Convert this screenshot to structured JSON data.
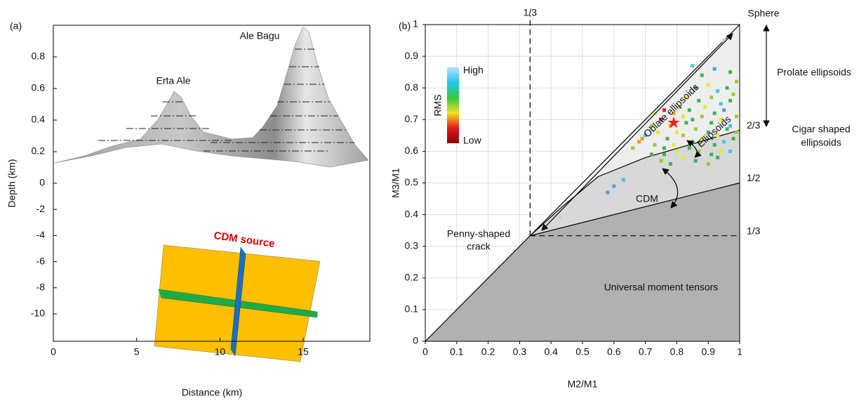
{
  "chart_data": [
    {
      "type": "illustration",
      "panel_label": "(a)",
      "xlabel": "Distance (km)",
      "ylabel": "Depth (km)",
      "xlim": [
        0,
        19
      ],
      "xticks": [
        0,
        5,
        10,
        15
      ],
      "y_segments": [
        {
          "ylim": [
            0,
            1
          ],
          "yticks": [
            0.2,
            0.4,
            0.6,
            0.8
          ]
        },
        {
          "ylim": [
            -12.1,
            0
          ],
          "yticks": [
            0,
            -2,
            -4,
            -6,
            -8,
            -10
          ]
        }
      ],
      "annotations": {
        "peak1": "Erta Ale",
        "peak2": "Ale Bagu",
        "source": "CDM source"
      }
    },
    {
      "type": "scatter",
      "panel_label": "(b)",
      "xlabel": "M2/M1",
      "ylabel": "M3/M1",
      "xlim": [
        0,
        1
      ],
      "ylim": [
        0,
        1
      ],
      "xticks": [
        0,
        0.1,
        0.2,
        0.3,
        0.4,
        0.5,
        0.6,
        0.7,
        0.8,
        0.9,
        1
      ],
      "yticks": [
        0,
        0.1,
        0.2,
        0.3,
        0.4,
        0.5,
        0.6,
        0.7,
        0.8,
        0.9,
        1
      ],
      "x2ticks": [
        {
          "value": 0.3333,
          "label": "1/3"
        }
      ],
      "y2lim": [
        0,
        1
      ],
      "y2ticks": [
        {
          "value": 0.6667,
          "label": "2/3"
        },
        {
          "value": 0.5,
          "label": "1/2"
        },
        {
          "value": 0.3333,
          "label": "1/3"
        }
      ],
      "grid": true,
      "regions": [
        {
          "color": "#a6a6a6",
          "x": [
            0,
            0.3333,
            1,
            1
          ],
          "y": [
            0,
            0.3333,
            0.5,
            0
          ]
        },
        {
          "color": "#d3d3d3",
          "x": [
            0.3333,
            0.43,
            0.55,
            0.7,
            1,
            1
          ],
          "y": [
            0.3333,
            0.42,
            0.52,
            0.58,
            0.6667,
            0.5
          ]
        },
        {
          "color": "#ececec",
          "x": [
            0.3333,
            1,
            1,
            0.7,
            0.55,
            0.43
          ],
          "y": [
            0.3333,
            1,
            0.6667,
            0.58,
            0.52,
            0.42
          ]
        }
      ],
      "lines": [
        {
          "dash": false,
          "x": [
            0,
            1
          ],
          "y": [
            0,
            1
          ]
        },
        {
          "dash": false,
          "x": [
            0.3333,
            1
          ],
          "y": [
            0.3333,
            0.5
          ]
        },
        {
          "dash": false,
          "x": [
            0.3333,
            0.43,
            0.55,
            0.7,
            1
          ],
          "y": [
            0.3333,
            0.42,
            0.52,
            0.58,
            0.6667
          ]
        },
        {
          "dash": true,
          "x": [
            0.3333,
            0.3333
          ],
          "y": [
            0.3333,
            1.03
          ]
        },
        {
          "dash": true,
          "x": [
            0.3333,
            1
          ],
          "y": [
            0.3333,
            0.3333
          ]
        }
      ],
      "series": [
        {
          "x": [
            0.95,
            0.85,
            0.88,
            0.92,
            0.97,
            0.99,
            0.86,
            0.9,
            0.93,
            0.96,
            0.98,
            0.83,
            0.87,
            0.91,
            0.94,
            0.97,
            0.81,
            0.84,
            0.89,
            0.92,
            0.95,
            0.99,
            0.76,
            0.79,
            0.82,
            0.85,
            0.88,
            0.91,
            0.94,
            0.97,
            0.73,
            0.75,
            0.78,
            0.8,
            0.83,
            0.86,
            0.9,
            0.93,
            0.96,
            0.99,
            0.72,
            0.74,
            0.77,
            0.79,
            0.82,
            0.85,
            0.88,
            0.92,
            0.95,
            0.98,
            0.7,
            0.73,
            0.76,
            0.8,
            0.84,
            0.87,
            0.91,
            0.94,
            0.68,
            0.72,
            0.75,
            0.78,
            0.82,
            0.86,
            0.9,
            0.93,
            0.97,
            0.63,
            0.6,
            0.69,
            0.43,
            0.58,
            0.66,
            0.76
          ],
          "values": [
            0.95,
            0.87,
            0.84,
            0.86,
            0.85,
            0.82,
            0.8,
            0.81,
            0.79,
            0.8,
            0.78,
            0.77,
            0.76,
            0.77,
            0.75,
            0.76,
            0.74,
            0.73,
            0.74,
            0.72,
            0.73,
            0.71,
            0.73,
            0.72,
            0.71,
            0.7,
            0.71,
            0.69,
            0.7,
            0.68,
            0.72,
            0.7,
            0.68,
            0.66,
            0.69,
            0.67,
            0.66,
            0.65,
            0.67,
            0.66,
            0.68,
            0.66,
            0.64,
            0.62,
            0.65,
            0.63,
            0.64,
            0.62,
            0.63,
            0.64,
            0.65,
            0.62,
            0.61,
            0.6,
            0.61,
            0.6,
            0.59,
            0.6,
            0.63,
            0.59,
            0.57,
            0.56,
            0.58,
            0.57,
            0.56,
            0.58,
            0.6,
            0.51,
            0.49,
            0.64,
            0.39,
            0.47,
            0.61,
            0.59
          ],
          "colors": [
            "#a8d8f0",
            "#3ec8e0",
            "#3cb44b",
            "#4aa0f0",
            "#3cb44b",
            "#9acd32",
            "#3cb44b",
            "#e8e82a",
            "#3ec8e0",
            "#3cb44b",
            "#9acd32",
            "#e8e82a",
            "#3cb44b",
            "#9acd32",
            "#3ec8e0",
            "#3cb44b",
            "#9acd32",
            "#3cb44b",
            "#e8e82a",
            "#3cb44b",
            "#4aa0f0",
            "#9acd32",
            "#d7191c",
            "#f39c12",
            "#e8e82a",
            "#3cb44b",
            "#9acd32",
            "#3cb44b",
            "#e8e82a",
            "#3ec8e0",
            "#e8e82a",
            "#d7191c",
            "#f39c12",
            "#e8e82a",
            "#3cb44b",
            "#9acd32",
            "#3cb44b",
            "#e8e82a",
            "#3cb44b",
            "#9acd32",
            "#9acd32",
            "#e8e82a",
            "#3cb44b",
            "#e8e82a",
            "#9acd32",
            "#3cb44b",
            "#e8e82a",
            "#3cb44b",
            "#3ec8e0",
            "#3cb44b",
            "#3ec8e0",
            "#9acd32",
            "#3cb44b",
            "#e8e82a",
            "#3cb44b",
            "#9acd32",
            "#3cb44b",
            "#e8e82a",
            "#f39c12",
            "#3cb44b",
            "#9acd32",
            "#3cb44b",
            "#e8e82a",
            "#3cb44b",
            "#9acd32",
            "#3cb44b",
            "#3ec8e0",
            "#3ec8e0",
            "#4aa0f0",
            "#f39c12",
            "#a8d8f0",
            "#4aa0f0",
            "#9acd32",
            "#3cb44b"
          ]
        }
      ],
      "star": {
        "x": 0.79,
        "y": 0.69,
        "color": "#ff1a1a"
      },
      "colorbar": {
        "label": "RMS",
        "high": "High",
        "low": "Low",
        "colors": [
          "#8b0000",
          "#e31a1c",
          "#f0e020",
          "#2ecc40",
          "#22c8e8",
          "#b0e0ff"
        ]
      },
      "annotations": {
        "sphere": "Sphere",
        "prolate": "Prolate ellipsoids",
        "cigar": [
          "Cigar shaped",
          "ellipsoids"
        ],
        "oblate": "Oblate ellipsoids",
        "ellipsoids": "Ellipsoids",
        "cdm": "CDM",
        "penny": [
          "Penny-shaped",
          "crack"
        ],
        "universal": "Universal moment tensors"
      }
    }
  ]
}
